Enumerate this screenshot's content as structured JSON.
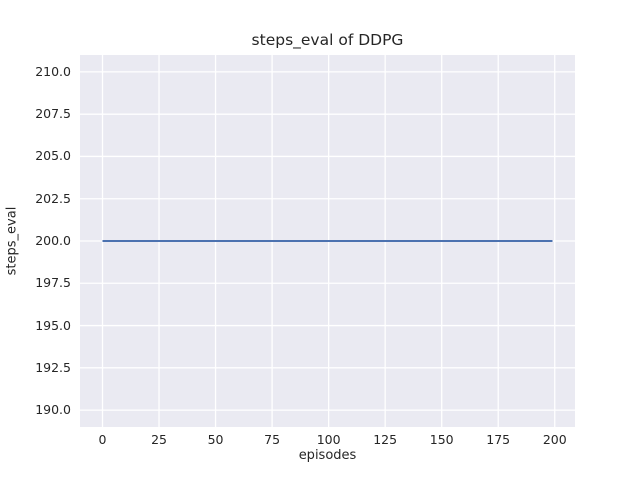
{
  "chart_data": {
    "type": "line",
    "title": "steps_eval of DDPG",
    "xlabel": "episodes",
    "ylabel": "steps_eval",
    "xlim": [
      -9.95,
      208.95
    ],
    "ylim": [
      189,
      211
    ],
    "grid": true,
    "legend_position": "none",
    "xticks": [
      {
        "v": 0,
        "label": "0"
      },
      {
        "v": 25,
        "label": "25"
      },
      {
        "v": 50,
        "label": "50"
      },
      {
        "v": 75,
        "label": "75"
      },
      {
        "v": 100,
        "label": "100"
      },
      {
        "v": 125,
        "label": "125"
      },
      {
        "v": 150,
        "label": "150"
      },
      {
        "v": 175,
        "label": "175"
      },
      {
        "v": 200,
        "label": "200"
      }
    ],
    "yticks": [
      {
        "v": 190,
        "label": "190.0"
      },
      {
        "v": 192.5,
        "label": "192.5"
      },
      {
        "v": 195,
        "label": "195.0"
      },
      {
        "v": 197.5,
        "label": "197.5"
      },
      {
        "v": 200,
        "label": "200.0"
      },
      {
        "v": 202.5,
        "label": "202.5"
      },
      {
        "v": 205,
        "label": "205.0"
      },
      {
        "v": 207.5,
        "label": "207.5"
      },
      {
        "v": 210,
        "label": "210.0"
      }
    ],
    "series": [
      {
        "name": "DDPG",
        "color": "#4c72b0",
        "points": [
          [
            0,
            200
          ],
          [
            199,
            200
          ]
        ]
      }
    ],
    "colors": {
      "figure_bg": "#ffffff",
      "plot_bg": "#eaeaf2",
      "grid": "#ffffff",
      "text": "#262626",
      "line": "#4c72b0"
    }
  }
}
